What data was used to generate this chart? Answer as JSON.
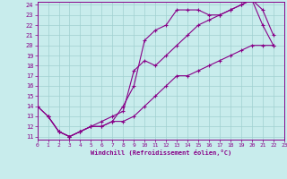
{
  "xlabel": "Windchill (Refroidissement éolien,°C)",
  "ylabel": "",
  "xlim": [
    0,
    23
  ],
  "ylim": [
    11,
    24
  ],
  "yticks": [
    11,
    12,
    13,
    14,
    15,
    16,
    17,
    18,
    19,
    20,
    21,
    22,
    23,
    24
  ],
  "xticks": [
    0,
    1,
    2,
    3,
    4,
    5,
    6,
    7,
    8,
    9,
    10,
    11,
    12,
    13,
    14,
    15,
    16,
    17,
    18,
    19,
    20,
    21,
    22,
    23
  ],
  "bg_color": "#c8ecec",
  "grid_color": "#a0d0d0",
  "line_color": "#880088",
  "line1_x": [
    0,
    1,
    2,
    3,
    4,
    5,
    6,
    7,
    8,
    9,
    10,
    11,
    12,
    13,
    14,
    15,
    16,
    17,
    18,
    19,
    20,
    21,
    22
  ],
  "line1_y": [
    14,
    13,
    11.5,
    11,
    11.5,
    12,
    12,
    12.5,
    14,
    16,
    20.5,
    21.5,
    22,
    23.5,
    23.5,
    23.5,
    23,
    23,
    23.5,
    24,
    24.5,
    23.5,
    21
  ],
  "line2_x": [
    0,
    1,
    2,
    3,
    4,
    5,
    6,
    7,
    8,
    9,
    10,
    11,
    12,
    13,
    14,
    15,
    16,
    17,
    18,
    19,
    20,
    21,
    22
  ],
  "line2_y": [
    14,
    13,
    11.5,
    11,
    11.5,
    12,
    12.5,
    13,
    13.5,
    17.5,
    18.5,
    18,
    19,
    20,
    21,
    22,
    22.5,
    23,
    23.5,
    24,
    24.5,
    22,
    20
  ],
  "line3_x": [
    1,
    2,
    3,
    4,
    5,
    6,
    7,
    8,
    9,
    10,
    11,
    12,
    13,
    14,
    15,
    16,
    17,
    18,
    19,
    20,
    21,
    22
  ],
  "line3_y": [
    13,
    11.5,
    11,
    11.5,
    12,
    12,
    12.5,
    12.5,
    13,
    14,
    15,
    16,
    17,
    17,
    17.5,
    18,
    18.5,
    19,
    19.5,
    20,
    20,
    20
  ]
}
